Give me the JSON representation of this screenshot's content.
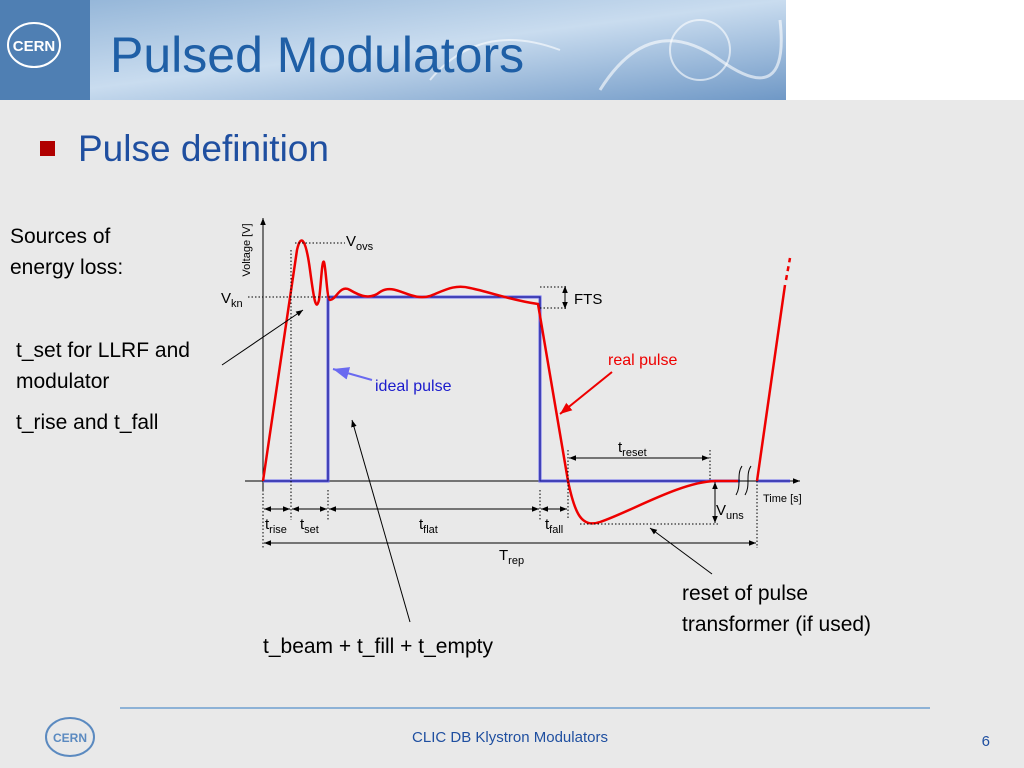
{
  "header": {
    "title": "Pulsed Modulators",
    "logo": "CERN"
  },
  "bullet": "Pulse definition",
  "notes": {
    "sources": [
      "Sources of",
      "energy loss:"
    ],
    "t_set": [
      "t_set for LLRF and",
      "modulator"
    ],
    "t_rise": "t_rise and t_fall",
    "t_beam": "t_beam + t_fill + t_empty",
    "reset": [
      "reset of pulse",
      "transformer (if used)"
    ]
  },
  "diagram": {
    "y_axis": "Voltage [V]",
    "x_axis": "Time [s]",
    "real_pulse": "real pulse",
    "ideal_pulse": "ideal pulse",
    "fts": "FTS",
    "symbols": {
      "v_ovs": [
        "V",
        "ovs"
      ],
      "v_kn": [
        "V",
        "kn"
      ],
      "t_reset": [
        "t",
        "reset"
      ],
      "v_uns": [
        "V",
        "uns"
      ],
      "t_rise": [
        "t",
        "rise"
      ],
      "t_set": [
        "t",
        "set"
      ],
      "t_flat": [
        "t",
        "flat"
      ],
      "t_fall": [
        "t",
        "fall"
      ],
      "t_rep": [
        "T",
        "rep"
      ]
    }
  },
  "footer": {
    "text": "CLIC DB Klystron Modulators",
    "page": "6",
    "logo": "CERN"
  }
}
